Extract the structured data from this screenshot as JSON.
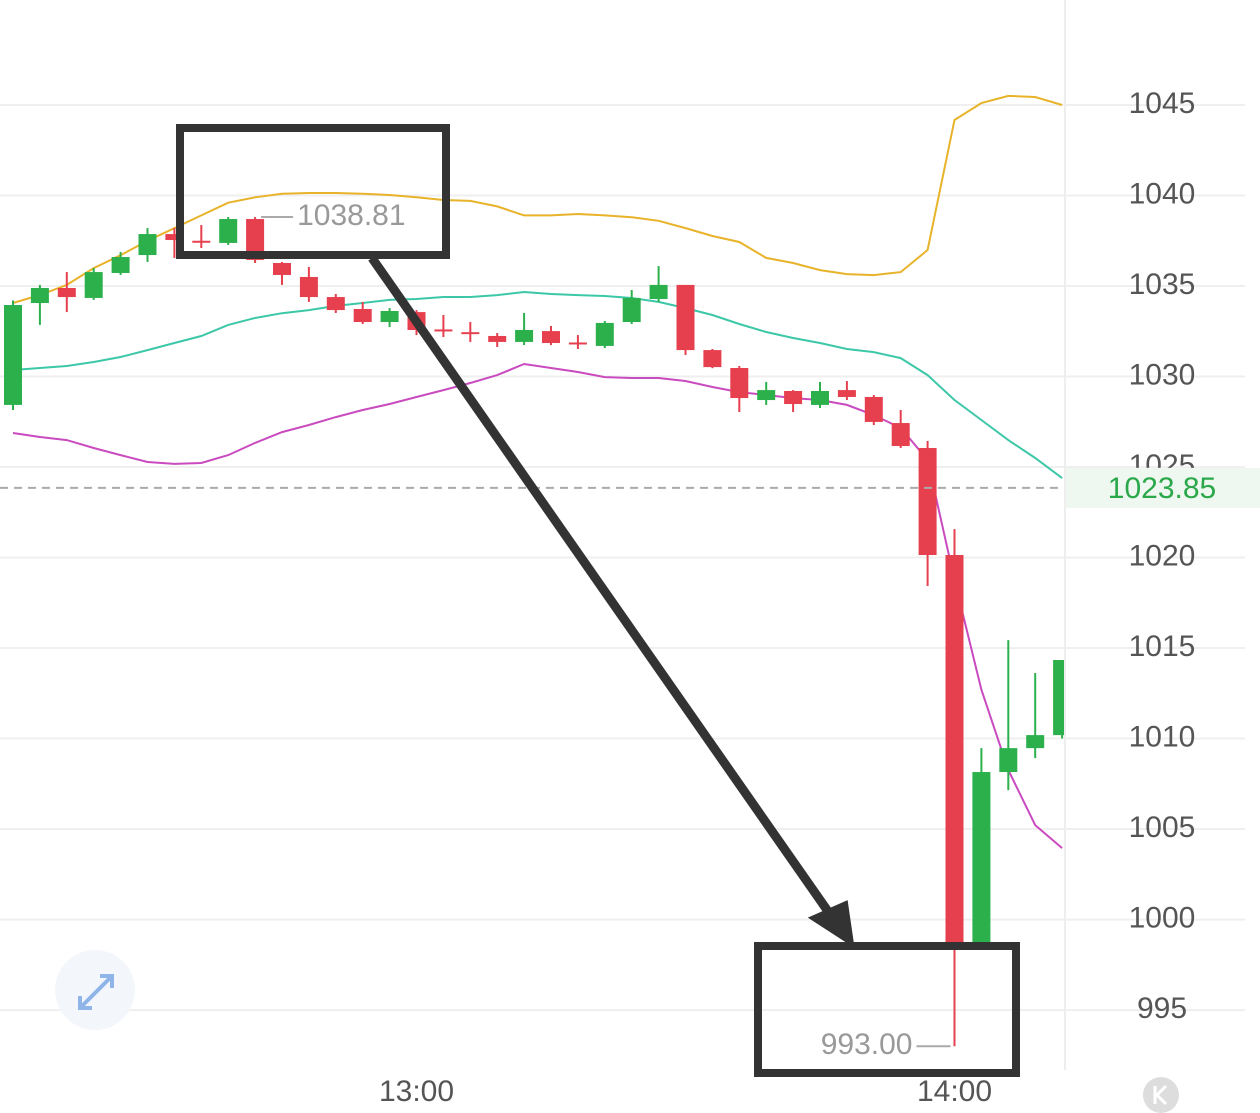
{
  "chart_data": {
    "type": "candlestick",
    "categories": [
      null,
      null,
      null,
      null,
      null,
      null,
      null,
      null,
      null,
      null,
      null,
      null,
      null,
      null,
      null,
      "13:00",
      null,
      null,
      null,
      null,
      null,
      null,
      null,
      null,
      null,
      null,
      null,
      null,
      null,
      null,
      null,
      null,
      null,
      null,
      null,
      "14:00",
      null,
      null,
      null,
      null
    ],
    "open": [
      1028.43,
      1034.06,
      1034.89,
      1034.34,
      1035.72,
      1036.71,
      1037.87,
      1037.5,
      1037.38,
      1038.7,
      1036.27,
      1035.5,
      1034.39,
      1033.73,
      1033.01,
      1033.56,
      1032.6,
      1032.45,
      1032.24,
      1031.91,
      1032.51,
      1031.88,
      1031.69,
      1033.01,
      1034.28,
      1035.06,
      1031.46,
      1030.47,
      1028.7,
      1029.2,
      1028.43,
      1029.25,
      1028.87,
      1027.43,
      1026.05,
      1020.14,
      998.7,
      1008.15,
      1009.47,
      1010.19
    ],
    "high": [
      1034.2,
      1035.06,
      1035.77,
      1035.99,
      1036.88,
      1038.2,
      1038.2,
      1038.37,
      1038.81,
      1038.81,
      1036.33,
      1036.05,
      1034.56,
      1034.12,
      1033.78,
      1033.67,
      1033.4,
      1033.01,
      1032.4,
      1033.51,
      1032.79,
      1032.29,
      1033.07,
      1034.78,
      1036.1,
      1035.06,
      1031.52,
      1030.58,
      1029.7,
      1029.25,
      1029.7,
      1029.75,
      1028.98,
      1028.15,
      1026.44,
      1021.57,
      1009.47,
      1015.44,
      1013.62,
      1014.34
    ],
    "low": [
      1028.15,
      1032.85,
      1033.56,
      1034.23,
      1035.61,
      1036.33,
      1036.55,
      1037.1,
      1037.27,
      1036.27,
      1035.06,
      1034.12,
      1033.51,
      1032.9,
      1032.73,
      1032.29,
      1032.18,
      1031.91,
      1031.63,
      1031.74,
      1031.74,
      1031.52,
      1031.57,
      1032.9,
      1034.12,
      1031.19,
      1030.46,
      1028.04,
      1028.43,
      1028.04,
      1028.26,
      1028.7,
      1027.32,
      1026.05,
      1018.43,
      993.0,
      998.5,
      1007.15,
      1008.92,
      1010.0
    ],
    "close": [
      1033.95,
      1034.89,
      1034.39,
      1035.77,
      1036.6,
      1037.87,
      1037.54,
      1037.45,
      1038.7,
      1036.44,
      1035.61,
      1034.39,
      1033.67,
      1033.01,
      1033.62,
      1032.57,
      1032.55,
      1032.4,
      1031.91,
      1032.57,
      1031.85,
      1031.82,
      1032.96,
      1034.34,
      1035.06,
      1031.46,
      1030.52,
      1028.81,
      1029.25,
      1028.48,
      1029.2,
      1028.87,
      1027.49,
      1026.16,
      1020.14,
      998.7,
      1008.15,
      1009.47,
      1010.19,
      1014.34
    ],
    "up_color": "#2bb04b",
    "down_color": "#e6404f",
    "lines": [
      {
        "color": "#e8b32a",
        "values": [
          1034.06,
          1034.5,
          1035.06,
          1035.99,
          1036.7,
          1037.5,
          1038.2,
          1038.9,
          1039.6,
          1039.9,
          1040.1,
          1040.14,
          1040.14,
          1040.1,
          1040.03,
          1039.9,
          1039.75,
          1039.7,
          1039.4,
          1038.9,
          1038.9,
          1038.98,
          1038.9,
          1038.8,
          1038.6,
          1038.2,
          1037.76,
          1037.43,
          1036.55,
          1036.27,
          1035.88,
          1035.66,
          1035.6,
          1035.77,
          1036.99,
          1044.17,
          1045.11,
          1045.5,
          1045.44,
          1045.0
        ]
      },
      {
        "color": "#3cc8a8",
        "values": [
          1030.36,
          1030.47,
          1030.58,
          1030.8,
          1031.08,
          1031.46,
          1031.85,
          1032.24,
          1032.85,
          1033.23,
          1033.5,
          1033.67,
          1033.9,
          1034.06,
          1034.23,
          1034.28,
          1034.39,
          1034.39,
          1034.5,
          1034.67,
          1034.56,
          1034.5,
          1034.45,
          1034.34,
          1034.12,
          1033.78,
          1033.4,
          1032.9,
          1032.46,
          1032.13,
          1031.85,
          1031.52,
          1031.35,
          1031.02,
          1030.08,
          1028.7,
          1027.6,
          1026.49,
          1025.5,
          1024.39
        ]
      },
      {
        "color": "#c94bbf",
        "values": [
          1026.88,
          1026.66,
          1026.49,
          1026.05,
          1025.66,
          1025.28,
          1025.17,
          1025.22,
          1025.66,
          1026.33,
          1026.93,
          1027.32,
          1027.76,
          1028.15,
          1028.48,
          1028.87,
          1029.25,
          1029.64,
          1030.08,
          1030.69,
          1030.47,
          1030.25,
          1029.97,
          1029.92,
          1029.92,
          1029.75,
          1029.42,
          1029.14,
          1028.98,
          1028.81,
          1028.7,
          1028.43,
          1027.87,
          1027.16,
          1025.39,
          1018.76,
          1012.7,
          1008.26,
          1005.22,
          1003.95
        ]
      }
    ],
    "high_marker": {
      "index": 9,
      "value": 1038.81
    },
    "low_marker": {
      "index": 35,
      "value": {
        "value": 993.0,
        "label": "993.00"
      }
    },
    "current_price": 1023.85,
    "current_color": "#2aa84a",
    "ylim": [
      991.8,
      1050.8
    ],
    "yticks": [
      995,
      1000,
      1005,
      1010,
      1015,
      1020,
      1025,
      1030,
      1035,
      1040,
      1045
    ],
    "grid": true
  }
}
